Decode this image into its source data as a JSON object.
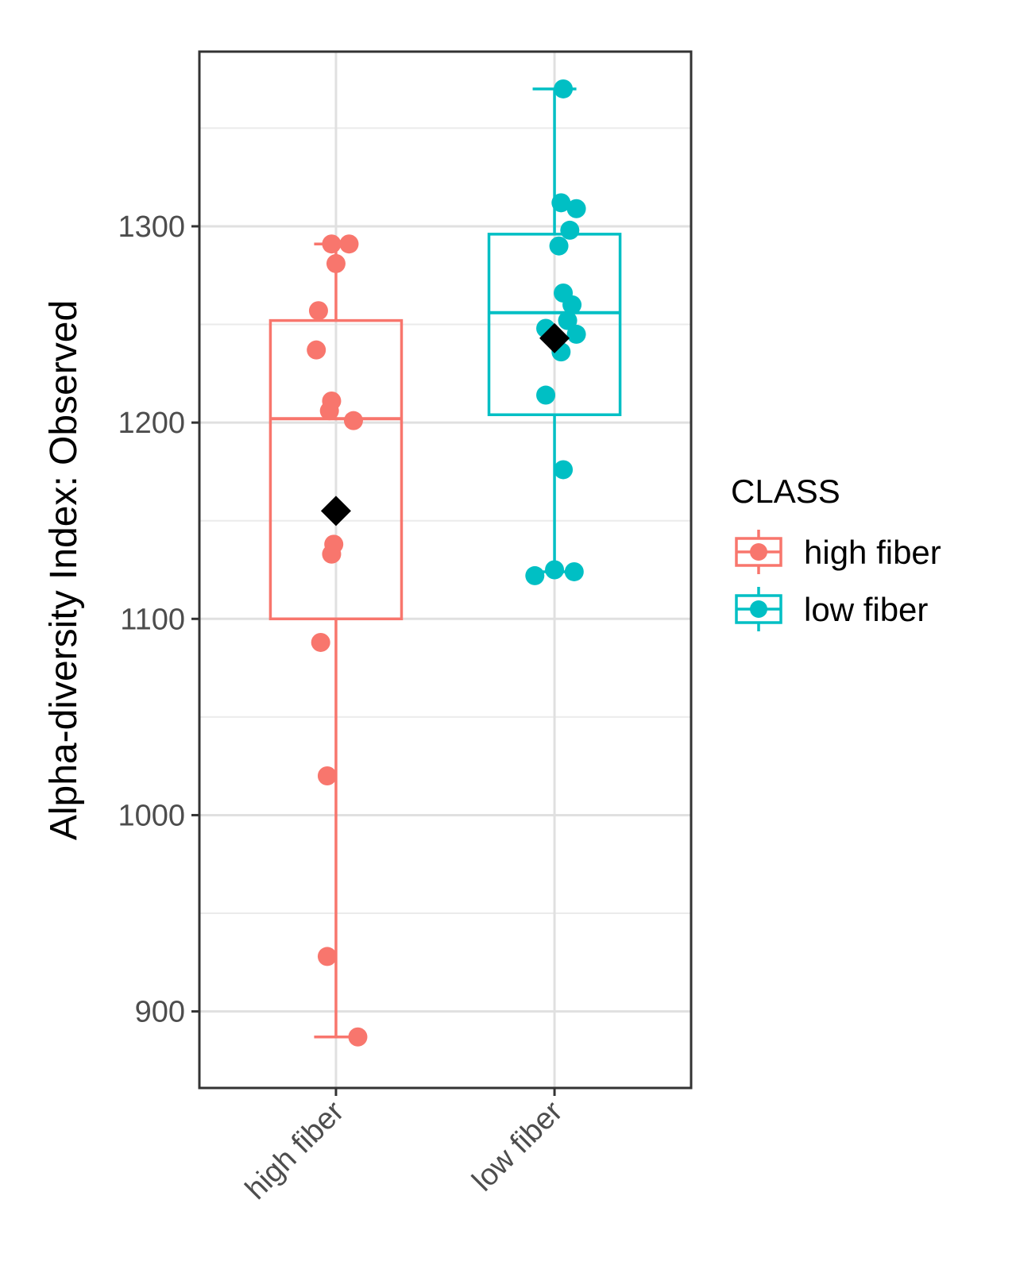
{
  "chart_data": {
    "type": "box",
    "xlabel": "",
    "ylabel": "Alpha-diversity Index: Observed",
    "ylim": [
      861,
      1389
    ],
    "y_ticks": [
      900,
      1000,
      1100,
      1200,
      1300
    ],
    "y_minor": [
      950,
      1050,
      1150,
      1250,
      1350
    ],
    "grid": true,
    "categories": [
      "high fiber",
      "low fiber"
    ],
    "legend": {
      "title": "CLASS",
      "position": "right",
      "items": [
        "high fiber",
        "low fiber"
      ]
    },
    "series": [
      {
        "category": "high fiber",
        "color": "#f8766d",
        "box": {
          "whisker_low": 887,
          "q1": 1100,
          "median": 1202,
          "q3": 1252,
          "whisker_high": 1291
        },
        "mean": 1155,
        "points": [
          [
            -0.02,
            1291
          ],
          [
            0.06,
            1291
          ],
          [
            0.0,
            1281
          ],
          [
            -0.08,
            1257
          ],
          [
            -0.09,
            1237
          ],
          [
            -0.02,
            1211
          ],
          [
            -0.03,
            1206
          ],
          [
            0.08,
            1201
          ],
          [
            -0.01,
            1138
          ],
          [
            -0.02,
            1133
          ],
          [
            -0.07,
            1088
          ],
          [
            -0.04,
            1020
          ],
          [
            -0.04,
            928
          ],
          [
            0.1,
            887
          ]
        ]
      },
      {
        "category": "low fiber",
        "color": "#00bfc4",
        "box": {
          "whisker_low": 1124,
          "q1": 1204,
          "median": 1256,
          "q3": 1296,
          "whisker_high": 1370
        },
        "mean": 1243,
        "points": [
          [
            0.04,
            1370
          ],
          [
            0.03,
            1312
          ],
          [
            0.1,
            1309
          ],
          [
            0.07,
            1298
          ],
          [
            0.02,
            1290
          ],
          [
            0.04,
            1266
          ],
          [
            0.08,
            1260
          ],
          [
            0.06,
            1252
          ],
          [
            -0.04,
            1248
          ],
          [
            0.1,
            1245
          ],
          [
            0.03,
            1236
          ],
          [
            -0.04,
            1214
          ],
          [
            0.04,
            1176
          ],
          [
            0.0,
            1125
          ],
          [
            -0.09,
            1122
          ],
          [
            0.09,
            1124
          ]
        ]
      }
    ]
  }
}
